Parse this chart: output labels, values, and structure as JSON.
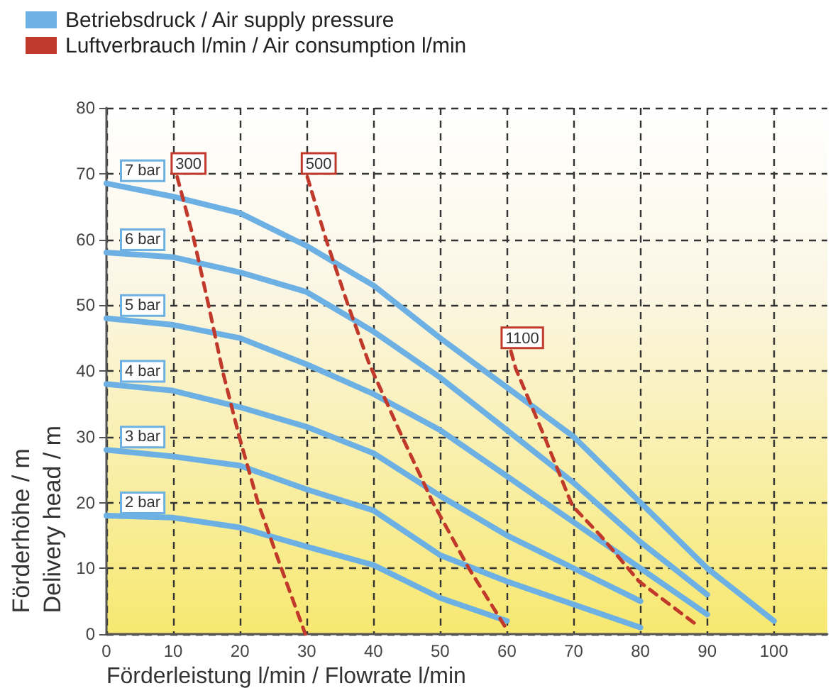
{
  "chart_data": {
    "type": "line",
    "xlabel": "Förderleistung l/min / Flowrate l/min",
    "ylabel": "Förderhöhe / m\nDelivery head / m",
    "annotations": [
      "Betriebsdruck / Air supply pressure",
      "Luftverbrauch l/min / Air consumption l/min"
    ],
    "xlim": [
      0,
      108
    ],
    "xticks": [
      0,
      10,
      20,
      30,
      40,
      50,
      60,
      70,
      80,
      90,
      100
    ],
    "ylim": [
      0,
      80
    ],
    "yticks": [
      0,
      10,
      20,
      30,
      40,
      50,
      60,
      70,
      80
    ],
    "grid": true,
    "marker": "none",
    "series": [
      {
        "name": "7 bar",
        "color": "#6cb0e4",
        "line_style": "solid",
        "x": [
          0,
          10,
          20,
          30,
          40,
          50,
          60,
          70,
          80,
          90,
          100
        ],
        "values": [
          68.5,
          66.5,
          64,
          59,
          53,
          45,
          37.5,
          30,
          20,
          10,
          2
        ]
      },
      {
        "name": "6 bar",
        "color": "#6cb0e4",
        "line_style": "solid",
        "x": [
          0,
          10,
          20,
          30,
          40,
          50,
          60,
          70,
          80,
          90
        ],
        "values": [
          58,
          57.3,
          55,
          52,
          46,
          39,
          31,
          23,
          14,
          6
        ]
      },
      {
        "name": "5 bar",
        "color": "#6cb0e4",
        "line_style": "solid",
        "x": [
          0,
          10,
          20,
          30,
          40,
          50,
          60,
          70,
          80,
          90
        ],
        "values": [
          48,
          47,
          45,
          41,
          36.5,
          31,
          24,
          17,
          10,
          3
        ]
      },
      {
        "name": "4 bar",
        "color": "#6cb0e4",
        "line_style": "solid",
        "x": [
          0,
          10,
          20,
          30,
          40,
          50,
          60,
          70,
          80
        ],
        "values": [
          38,
          37,
          34.5,
          31.5,
          27.5,
          21,
          15,
          10,
          5
        ]
      },
      {
        "name": "3 bar",
        "color": "#6cb0e4",
        "line_style": "solid",
        "x": [
          0,
          10,
          20,
          30,
          40,
          50,
          60,
          70,
          80
        ],
        "values": [
          28,
          27,
          25.6,
          22,
          18.8,
          12,
          8,
          4.5,
          1
        ]
      },
      {
        "name": "2 bar",
        "color": "#6cb0e4",
        "line_style": "solid",
        "x": [
          0,
          10,
          20,
          30,
          40,
          50,
          60
        ],
        "values": [
          18,
          17.7,
          16.2,
          13.3,
          10.5,
          5.5,
          2
        ]
      },
      {
        "name": "300",
        "color": "#c0392b",
        "line_style": "dashed",
        "x": [
          10.6,
          13.1,
          15.3,
          17.4,
          19.9,
          22.7,
          26.2,
          29.8
        ],
        "values": [
          69.5,
          60,
          50,
          40,
          30,
          20,
          10,
          0
        ]
      },
      {
        "name": "500",
        "color": "#c0392b",
        "line_style": "dashed",
        "x": [
          30.1,
          32.9,
          36.2,
          39.4,
          44.3,
          48.9,
          54.3,
          59.8
        ],
        "values": [
          69.5,
          60,
          50,
          41,
          30,
          20,
          10,
          1
        ]
      },
      {
        "name": "1100",
        "color": "#c0392b",
        "line_style": "dashed",
        "x": [
          60.6,
          61.3,
          65.5,
          69.8,
          74,
          79.8,
          88.3
        ],
        "values": [
          43,
          40.4,
          30.3,
          19.5,
          15,
          8,
          1.5
        ]
      }
    ]
  }
}
